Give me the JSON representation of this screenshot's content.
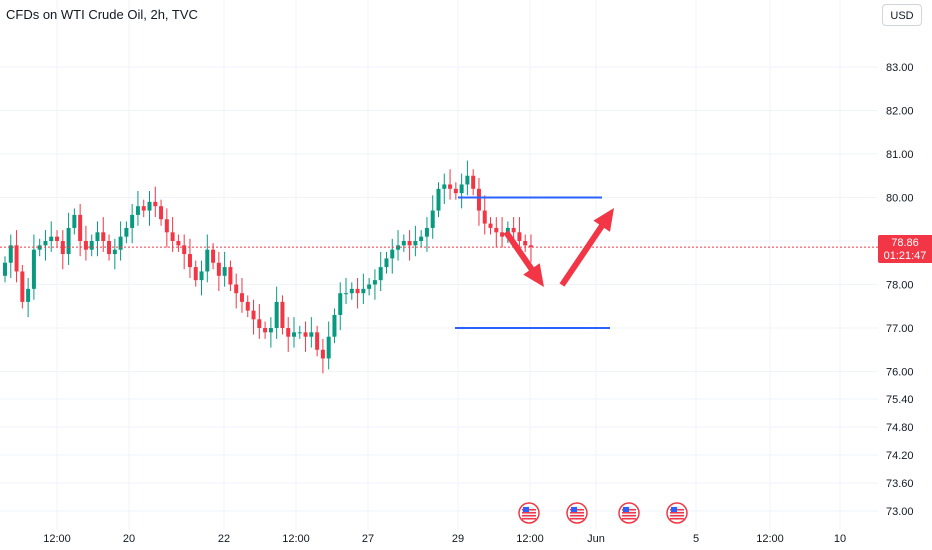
{
  "header": {
    "title": "CFDs on WTI Crude Oil, 2h, TVC",
    "currency": "USD"
  },
  "price_tag": {
    "value": "78.86",
    "countdown": "01:21:47"
  },
  "colors": {
    "up": "#089981",
    "down": "#f23645",
    "line": "#2962ff",
    "arrow": "#f23645",
    "grid": "#f0f3fa"
  },
  "icons": [
    "us-flag-icon",
    "us-flag-icon",
    "us-flag-icon",
    "us-flag-icon"
  ],
  "chart_data": {
    "type": "candlestick",
    "symbol": "CFDs on WTI Crude Oil",
    "interval": "2h",
    "source": "TVC",
    "y_ticks": [
      83.0,
      82.0,
      81.0,
      80.0,
      79.0,
      78.0,
      77.0,
      76.0,
      75.4,
      74.8,
      74.2,
      73.6,
      73.0
    ],
    "y_tick_labels": [
      "83.00",
      "82.00",
      "81.00",
      "80.00",
      "79.00",
      "78.00",
      "77.00",
      "76.00",
      "75.40",
      "74.80",
      "74.20",
      "73.60",
      "73.00"
    ],
    "x_tick_labels": [
      "12:00",
      "20",
      "22",
      "12:00",
      "27",
      "29",
      "12:00",
      "Jun",
      "5",
      "12:00",
      "10"
    ],
    "last_price": 78.86,
    "close_series": [
      78.5,
      78.9,
      78.3,
      77.6,
      77.9,
      78.8,
      78.9,
      79.0,
      79.1,
      79.0,
      78.7,
      79.3,
      79.6,
      79.0,
      78.8,
      79.0,
      79.2,
      79.0,
      78.7,
      78.8,
      79.1,
      79.3,
      79.6,
      79.8,
      79.7,
      79.9,
      79.8,
      79.5,
      79.2,
      79.0,
      78.9,
      78.7,
      78.4,
      78.1,
      78.3,
      78.8,
      78.5,
      78.2,
      78.4,
      78.0,
      77.8,
      77.6,
      77.4,
      77.2,
      77.0,
      76.9,
      77.0,
      77.6,
      77.0,
      76.8,
      76.9,
      76.9,
      76.8,
      76.9,
      76.5,
      76.3,
      76.8,
      77.3,
      77.8,
      77.8,
      77.9,
      77.8,
      77.9,
      78.0,
      78.1,
      78.4,
      78.6,
      78.8,
      78.9,
      79.0,
      78.9,
      79.0,
      79.1,
      79.3,
      79.7,
      80.2,
      80.3,
      80.2,
      80.1,
      80.3,
      80.5,
      80.2,
      79.7,
      79.4,
      79.3,
      79.2,
      79.1,
      79.3,
      79.2,
      79.0,
      78.9,
      78.86
    ],
    "horizontal_lines": [
      {
        "price": 80.0,
        "color": "#2962ff"
      },
      {
        "price": 77.0,
        "color": "#2962ff"
      }
    ],
    "arrows": [
      "down",
      "up"
    ],
    "event_markers": 4,
    "grid": true
  }
}
